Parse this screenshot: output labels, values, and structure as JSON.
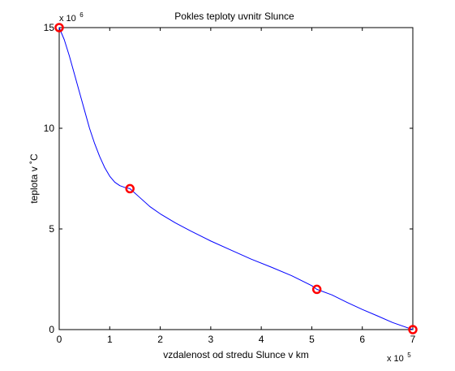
{
  "chart_data": {
    "type": "line",
    "title": "Pokles teploty uvnitr Slunce",
    "xlabel": "vzdalenost od stredu Slunce v km",
    "ylabel": "teplota v ˚C",
    "x_multiplier": {
      "base": "x 10",
      "exponent": "5"
    },
    "y_multiplier": {
      "base": "x 10",
      "exponent": "6"
    },
    "xlim": [
      0,
      7
    ],
    "ylim": [
      0,
      15
    ],
    "xticks": [
      0,
      1,
      2,
      3,
      4,
      5,
      6,
      7
    ],
    "xtick_labels": [
      "0",
      "1",
      "2",
      "3",
      "4",
      "5",
      "6",
      "7"
    ],
    "yticks": [
      0,
      5,
      10,
      15
    ],
    "ytick_labels": [
      "0",
      "5",
      "10",
      "15"
    ],
    "grid": false,
    "series": [
      {
        "style": "line",
        "color": "#0000ff",
        "x": [
          0,
          0.1,
          0.2,
          0.3,
          0.4,
          0.5,
          0.6,
          0.7,
          0.8,
          0.9,
          1.0,
          1.1,
          1.2,
          1.3,
          1.4,
          1.6,
          1.8,
          2.0,
          2.3,
          2.6,
          3.0,
          3.4,
          3.8,
          4.2,
          4.6,
          5.0,
          5.1,
          5.4,
          5.7,
          6.0,
          6.3,
          6.6,
          7.0
        ],
        "values": [
          15.0,
          14.4,
          13.6,
          12.7,
          11.8,
          10.9,
          10.0,
          9.25,
          8.6,
          8.05,
          7.62,
          7.32,
          7.15,
          7.06,
          7.0,
          6.55,
          6.1,
          5.75,
          5.3,
          4.9,
          4.4,
          3.95,
          3.5,
          3.1,
          2.68,
          2.18,
          2.0,
          1.72,
          1.35,
          1.0,
          0.68,
          0.35,
          0.0
        ]
      },
      {
        "style": "markers",
        "marker": "circle",
        "color": "#ff0000",
        "x": [
          0,
          1.4,
          5.1,
          7.0
        ],
        "values": [
          15.0,
          7.0,
          2.0,
          0.0
        ]
      }
    ]
  }
}
